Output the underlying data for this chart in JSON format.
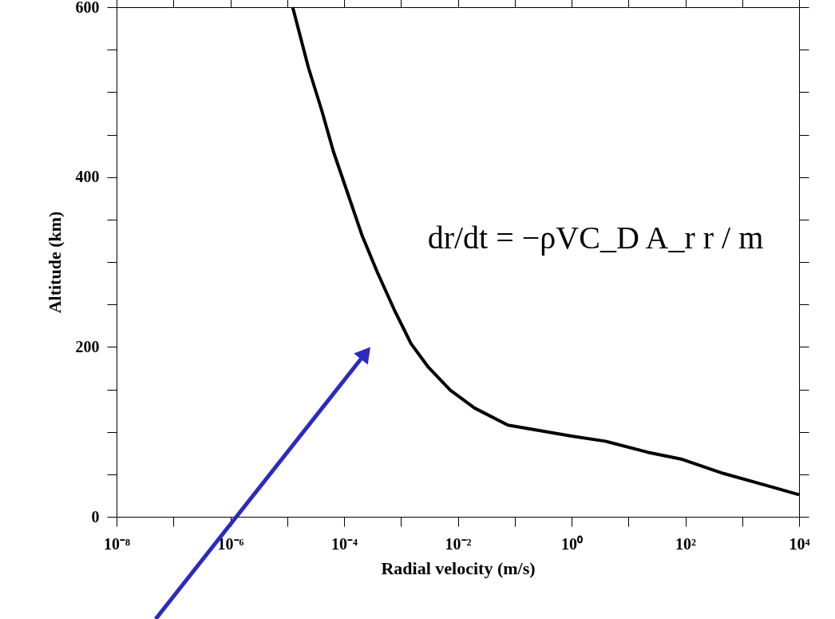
{
  "chart_data": {
    "type": "line",
    "xlabel": "Radial velocity (m/s)",
    "ylabel": "Altitude (km)",
    "log": "x",
    "grid": false,
    "marker": "none",
    "line_style": "solid",
    "x": [
      1.25e-05,
      2.36e-05,
      4.07e-05,
      6.5e-05,
      0.000113,
      0.000208,
      0.000384,
      0.00076,
      0.0015,
      0.00296,
      0.0074,
      0.0197,
      0.076,
      1.0,
      3.9,
      21.7,
      83.8,
      468,
      2620,
      10000.0
    ],
    "series": [
      {
        "color": "#000000",
        "values": [
          600,
          529,
          478,
          430,
          383,
          331,
          288,
          244,
          204,
          177,
          149,
          128,
          108,
          95,
          89,
          76,
          68,
          51,
          37,
          26
        ]
      }
    ],
    "xlim": [
      1e-08,
      10000.0
    ],
    "xticks": [
      {
        "value": 1e-08,
        "label": "10⁻⁸"
      },
      {
        "value": 1e-07,
        "label": null
      },
      {
        "value": 1e-06,
        "label": "10⁻⁶"
      },
      {
        "value": 1e-05,
        "label": null
      },
      {
        "value": 0.0001,
        "label": "10⁻⁴"
      },
      {
        "value": 0.001,
        "label": null
      },
      {
        "value": 0.01,
        "label": "10⁻²"
      },
      {
        "value": 0.1,
        "label": null
      },
      {
        "value": 1,
        "label": "10⁰"
      },
      {
        "value": 10,
        "label": null
      },
      {
        "value": 100,
        "label": "10²"
      },
      {
        "value": 1000,
        "label": null
      },
      {
        "value": 10000,
        "label": "10⁴"
      }
    ],
    "ylim": [
      0,
      600
    ],
    "yticks": [
      0,
      {
        "value": 50,
        "label": null
      },
      {
        "value": 100,
        "label": null
      },
      {
        "value": 150,
        "label": null
      },
      200,
      {
        "value": 250,
        "label": null
      },
      {
        "value": 300,
        "label": null
      },
      {
        "value": 350,
        "label": null
      },
      400,
      {
        "value": 450,
        "label": null
      },
      {
        "value": 500,
        "label": null
      },
      {
        "value": 550,
        "label": null
      },
      600
    ],
    "annotations": [
      "dr/dt = −ρVC_D A_r r / m"
    ]
  }
}
